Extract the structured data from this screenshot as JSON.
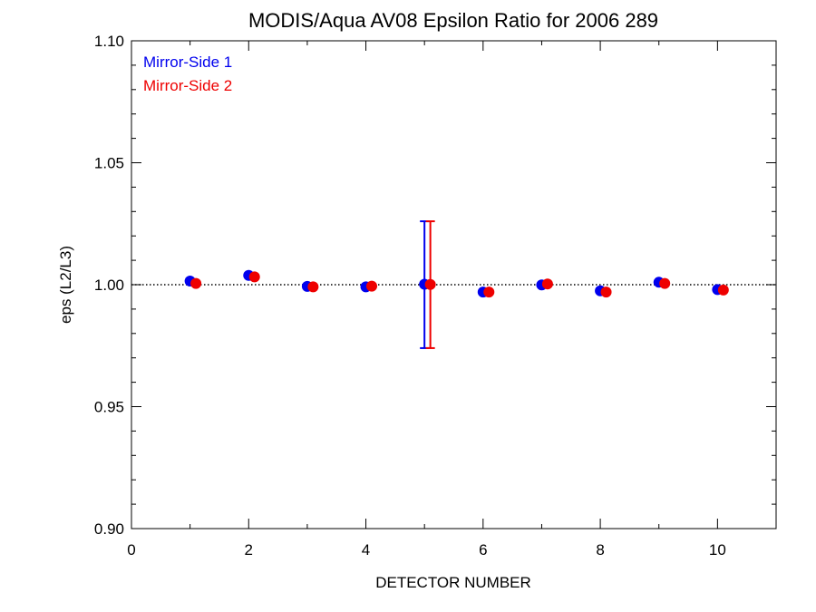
{
  "chart_data": {
    "type": "scatter",
    "title": "MODIS/Aqua AV08 Epsilon Ratio for 2006 289",
    "xlabel": "DETECTOR NUMBER",
    "ylabel": "eps (L2/L3)",
    "xlim": [
      0,
      11
    ],
    "ylim": [
      0.9,
      1.1
    ],
    "x_ticks": [
      0,
      2,
      4,
      6,
      8,
      10
    ],
    "x_tick_labels": [
      "0",
      "2",
      "4",
      "6",
      "8",
      "10"
    ],
    "y_ticks": [
      0.9,
      0.95,
      1.0,
      1.05,
      1.1
    ],
    "y_tick_labels": [
      "0.90",
      "0.95",
      "1.00",
      "1.05",
      "1.10"
    ],
    "reference_line": {
      "y": 1.0,
      "style": "dotted"
    },
    "legend_position": "top-left",
    "series": [
      {
        "name": "Mirror-Side 1",
        "color": "#0000ee",
        "x": [
          1,
          2,
          3,
          4,
          5,
          6,
          7,
          8,
          9,
          10
        ],
        "y": [
          1.0015,
          1.0038,
          0.9993,
          0.9991,
          1.0002,
          0.997,
          0.9999,
          0.9975,
          1.001,
          0.998
        ],
        "error_bars": [
          {
            "x": 5,
            "low": 0.974,
            "high": 1.026
          }
        ]
      },
      {
        "name": "Mirror-Side 2",
        "color": "#ee0000",
        "x": [
          1.1,
          2.1,
          3.1,
          4.1,
          5.1,
          6.1,
          7.1,
          8.1,
          9.1,
          10.1
        ],
        "y": [
          1.0005,
          1.0032,
          0.9991,
          0.9994,
          1.0001,
          0.997,
          1.0003,
          0.997,
          1.0005,
          0.9978
        ],
        "error_bars": [
          {
            "x": 5.1,
            "low": 0.974,
            "high": 1.026
          }
        ]
      }
    ]
  }
}
